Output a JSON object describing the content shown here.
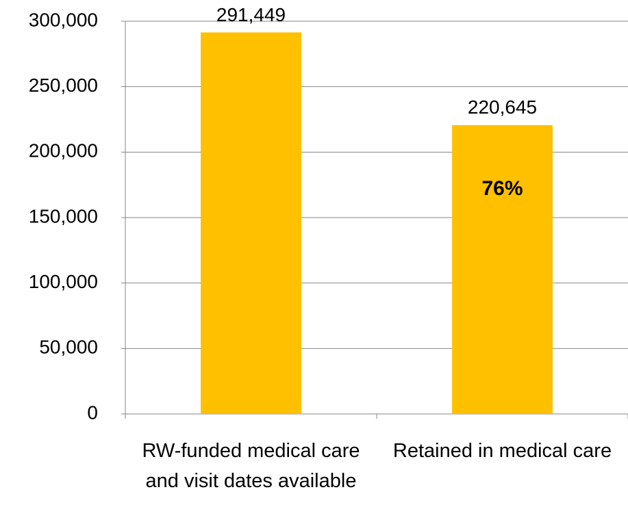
{
  "chart_data": {
    "type": "bar",
    "categories": [
      "RW-funded medical care and visit dates available",
      "Retained in medical care"
    ],
    "values": [
      291449,
      220645
    ],
    "value_labels": [
      "291,449",
      "220,645"
    ],
    "color": "#ffc000",
    "annotations": [
      "76%"
    ],
    "ylim": [
      0,
      300000
    ],
    "yticks": [
      0,
      {
        "value": 50000,
        "label": "50,000"
      },
      {
        "value": 100000,
        "label": "100,000"
      },
      {
        "value": 150000,
        "label": "150,000"
      },
      {
        "value": 200000,
        "label": "200,000"
      },
      {
        "value": 250000,
        "label": "250,000"
      },
      {
        "value": 300000,
        "label": "300,000"
      }
    ],
    "grid": true
  }
}
